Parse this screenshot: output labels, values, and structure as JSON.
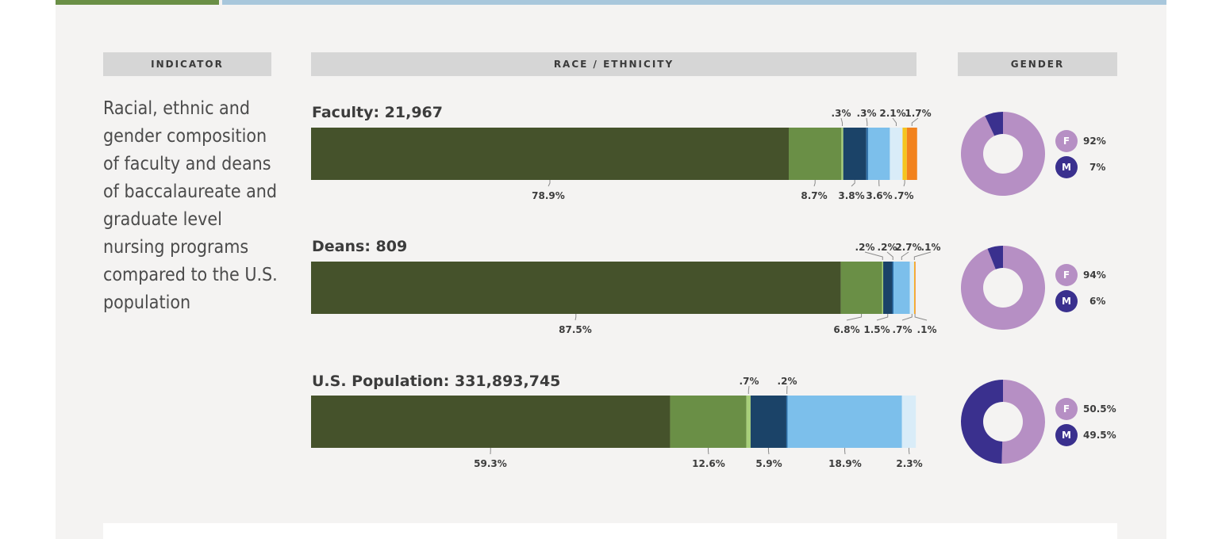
{
  "headers": {
    "indicator": "INDICATOR",
    "race": "RACE / ETHNICITY",
    "gender": "GENDER"
  },
  "indicator_text": "Racial, ethnic and gender composition of faculty and deans of baccalaureate and graduate level nursing programs compared to the U.S. population",
  "colors": [
    "#45522b",
    "#6a8f46",
    "#a7cf7a",
    "#1b4368",
    "#7cbfeb",
    "#d9ecf8",
    "#f5c51d",
    "#f2821d"
  ],
  "gender_colors": {
    "F": "#b68fc4",
    "M": "#3a308e"
  },
  "chart_data": {
    "type": "bar",
    "stacked": true,
    "orientation": "horizontal",
    "rows": [
      {
        "title": "Faculty: 21,967",
        "segments": [
          {
            "value": 78.9,
            "color": "#45522b",
            "label": "78.9%",
            "label_pos": "below"
          },
          {
            "value": 8.7,
            "color": "#6a8f46",
            "label": "8.7%",
            "label_pos": "below"
          },
          {
            "value": 0.3,
            "color": "#a7cf7a",
            "label": ".3%",
            "label_pos": "above"
          },
          {
            "value": 3.8,
            "color": "#1b4368",
            "label": "3.8%",
            "label_pos": "below"
          },
          {
            "value": 0.3,
            "color": "#2c6fa8",
            "label": ".3%",
            "label_pos": "above"
          },
          {
            "value": 3.6,
            "color": "#7cbfeb",
            "label": "3.6%",
            "label_pos": "below"
          },
          {
            "value": 2.1,
            "color": "#d9ecf8",
            "label": "2.1%",
            "label_pos": "above"
          },
          {
            "value": 0.7,
            "color": "#f5c51d",
            "label": ".7%",
            "label_pos": "below"
          },
          {
            "value": 1.7,
            "color": "#f2821d",
            "label": "1.7%",
            "label_pos": "above"
          }
        ],
        "gender": {
          "F": 92,
          "M": 7,
          "F_label": "92%",
          "M_label": "7%"
        }
      },
      {
        "title": "Deans: 809",
        "segments": [
          {
            "value": 87.5,
            "color": "#45522b",
            "label": "87.5%",
            "label_pos": "below"
          },
          {
            "value": 6.8,
            "color": "#6a8f46",
            "label": "6.8%",
            "label_pos": "below"
          },
          {
            "value": 0.2,
            "color": "#a7cf7a",
            "label": ".2%",
            "label_pos": "above"
          },
          {
            "value": 1.5,
            "color": "#1b4368",
            "label": "1.5%",
            "label_pos": "below"
          },
          {
            "value": 0.2,
            "color": "#2c6fa8",
            "label": ".2%",
            "label_pos": "above"
          },
          {
            "value": 2.7,
            "color": "#7cbfeb",
            "label": "2.7%",
            "label_pos": "above"
          },
          {
            "value": 0.7,
            "color": "#d9ecf8",
            "label": ".7%",
            "label_pos": "below"
          },
          {
            "value": 0.1,
            "color": "#f5c51d",
            "label": ".1%",
            "label_pos": "above"
          },
          {
            "value": 0.1,
            "color": "#f2821d",
            "label": ".1%",
            "label_pos": "below"
          }
        ],
        "gender": {
          "F": 94,
          "M": 6,
          "F_label": "94%",
          "M_label": "6%"
        }
      },
      {
        "title": "U.S. Population: 331,893,745",
        "segments": [
          {
            "value": 59.3,
            "color": "#45522b",
            "label": "59.3%",
            "label_pos": "below"
          },
          {
            "value": 12.6,
            "color": "#6a8f46",
            "label": "12.6%",
            "label_pos": "below"
          },
          {
            "value": 0.7,
            "color": "#a7cf7a",
            "label": ".7%",
            "label_pos": "above"
          },
          {
            "value": 5.9,
            "color": "#1b4368",
            "label": "5.9%",
            "label_pos": "below"
          },
          {
            "value": 0.2,
            "color": "#2c6fa8",
            "label": ".2%",
            "label_pos": "above"
          },
          {
            "value": 18.9,
            "color": "#7cbfeb",
            "label": "18.9%",
            "label_pos": "below"
          },
          {
            "value": 2.3,
            "color": "#d9ecf8",
            "label": "2.3%",
            "label_pos": "below"
          }
        ],
        "gender": {
          "F": 50.5,
          "M": 49.5,
          "F_label": "50.5%",
          "M_label": "49.5%"
        }
      }
    ]
  }
}
